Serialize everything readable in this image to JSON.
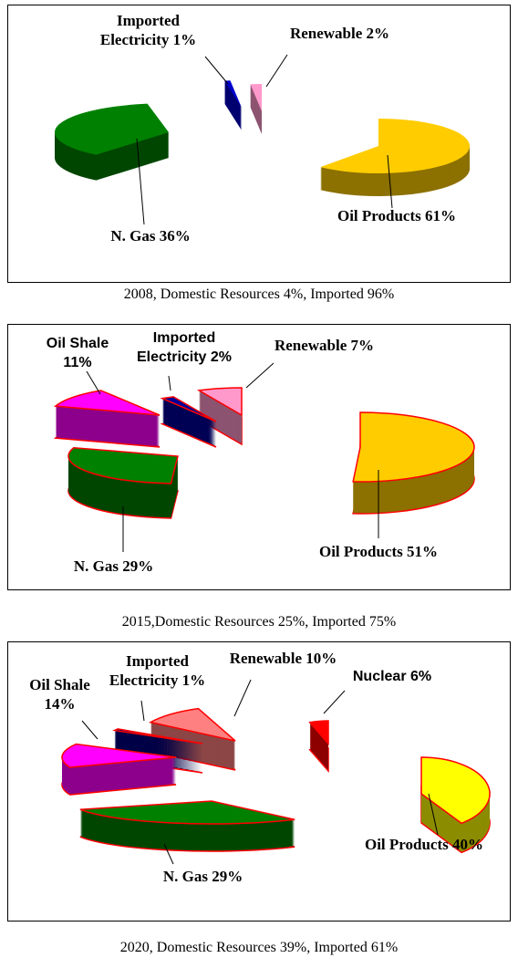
{
  "chart_data": [
    {
      "type": "pie",
      "title": "2008, Domestic Resources 4%, Imported 96%",
      "categories": [
        "Oil Products",
        "N. Gas",
        "Imported Electricity",
        "Renewable"
      ],
      "values": [
        61,
        36,
        1,
        2
      ],
      "value_labels": [
        "61%",
        "36%",
        "1%",
        "2%"
      ],
      "colors": [
        "#ffcc00",
        "#008000",
        "#0000cc",
        "#ff99cc"
      ]
    },
    {
      "type": "pie",
      "title": "2015,Domestic Resources 25%, Imported 75%",
      "categories": [
        "Oil Products",
        "N. Gas",
        "Oil Shale",
        "Imported Electricity",
        "Renewable"
      ],
      "values": [
        51,
        29,
        11,
        2,
        7
      ],
      "value_labels": [
        "51%",
        "29%",
        "11%",
        "2%",
        "7%"
      ],
      "colors": [
        "#ffcc00",
        "#008000",
        "#ff00ff",
        "#000099",
        "#ff99cc"
      ],
      "edgecolor": "#ff0000"
    },
    {
      "type": "pie",
      "title": "2020, Domestic Resources 39%, Imported 61%",
      "categories": [
        "Oil Products",
        "N. Gas",
        "Oil Shale",
        "Imported Electricity",
        "Renewable",
        "Nuclear"
      ],
      "values": [
        40,
        29,
        14,
        1,
        10,
        6
      ],
      "value_labels": [
        "40%",
        "29%",
        "14%",
        "1%",
        "10%",
        "6%"
      ],
      "colors": [
        "#ffff00",
        "#008000",
        "#ff00ff",
        "#000080",
        "#ff8080",
        "#ff0000"
      ],
      "edgecolor": "#ff0000"
    }
  ]
}
